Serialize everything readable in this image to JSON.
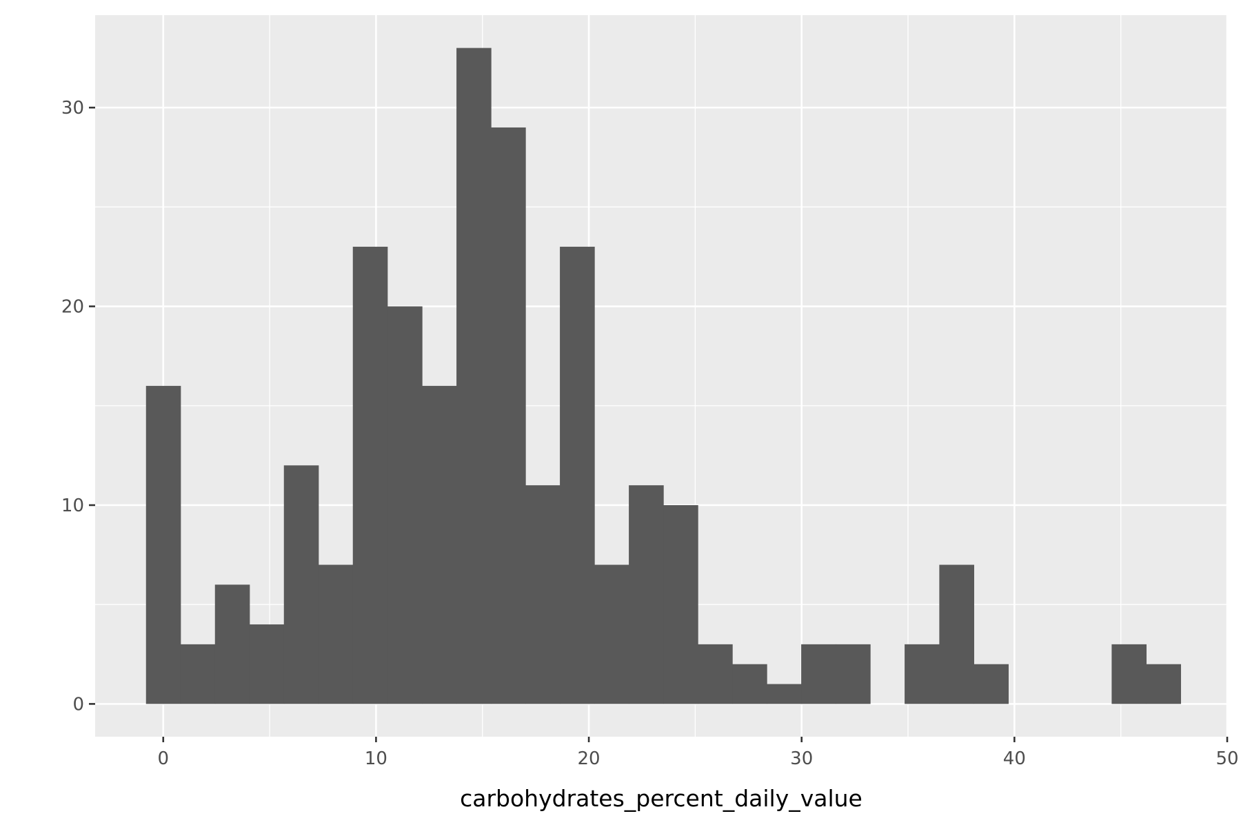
{
  "chart_data": {
    "type": "bar",
    "subtype": "histogram",
    "title": "",
    "xlabel": "carbohydrates_percent_daily_value",
    "ylabel": "",
    "bin_width": 1.6207,
    "bins": [
      {
        "x0": -0.81,
        "x1": 0.81,
        "count": 16
      },
      {
        "x0": 0.81,
        "x1": 2.43,
        "count": 3
      },
      {
        "x0": 2.43,
        "x1": 4.05,
        "count": 6
      },
      {
        "x0": 4.05,
        "x1": 5.67,
        "count": 4
      },
      {
        "x0": 5.67,
        "x1": 7.29,
        "count": 12
      },
      {
        "x0": 7.29,
        "x1": 8.91,
        "count": 7
      },
      {
        "x0": 8.91,
        "x1": 10.53,
        "count": 23
      },
      {
        "x0": 10.53,
        "x1": 12.16,
        "count": 20
      },
      {
        "x0": 12.16,
        "x1": 13.78,
        "count": 16
      },
      {
        "x0": 13.78,
        "x1": 15.4,
        "count": 33
      },
      {
        "x0": 15.4,
        "x1": 17.02,
        "count": 29
      },
      {
        "x0": 17.02,
        "x1": 18.64,
        "count": 11
      },
      {
        "x0": 18.64,
        "x1": 20.26,
        "count": 23
      },
      {
        "x0": 20.26,
        "x1": 21.88,
        "count": 7
      },
      {
        "x0": 21.88,
        "x1": 23.5,
        "count": 11
      },
      {
        "x0": 23.5,
        "x1": 25.12,
        "count": 10
      },
      {
        "x0": 25.12,
        "x1": 26.74,
        "count": 3
      },
      {
        "x0": 26.74,
        "x1": 28.36,
        "count": 2
      },
      {
        "x0": 28.36,
        "x1": 29.98,
        "count": 1
      },
      {
        "x0": 29.98,
        "x1": 31.6,
        "count": 3
      },
      {
        "x0": 31.6,
        "x1": 33.22,
        "count": 3
      },
      {
        "x0": 33.22,
        "x1": 34.84,
        "count": 0
      },
      {
        "x0": 34.84,
        "x1": 36.47,
        "count": 3
      },
      {
        "x0": 36.47,
        "x1": 38.09,
        "count": 7
      },
      {
        "x0": 38.09,
        "x1": 39.71,
        "count": 2
      },
      {
        "x0": 39.71,
        "x1": 41.33,
        "count": 0
      },
      {
        "x0": 41.33,
        "x1": 42.95,
        "count": 0
      },
      {
        "x0": 42.95,
        "x1": 44.57,
        "count": 0
      },
      {
        "x0": 44.57,
        "x1": 46.19,
        "count": 3
      },
      {
        "x0": 46.19,
        "x1": 47.81,
        "count": 2
      }
    ],
    "xlim": [
      -3.2,
      50
    ],
    "ylim": [
      -1.65,
      34.65
    ],
    "x_ticks": [
      0,
      10,
      20,
      30,
      40,
      50
    ],
    "x_tick_labels": [
      "0",
      "10",
      "20",
      "30",
      "40",
      "50"
    ],
    "y_ticks": [
      0,
      10,
      20,
      30
    ],
    "y_tick_labels": [
      "0",
      "10",
      "20",
      "30"
    ],
    "x_minor_grid": [
      5,
      15,
      25,
      35,
      45
    ],
    "y_minor_grid": [
      5,
      15,
      25
    ],
    "grid": true,
    "legend": "none",
    "colors": {
      "panel": "#EBEBEB",
      "grid": "#FFFFFF",
      "bar": "#595959",
      "tick_label": "#4D4D4D",
      "axis_title": "#000000",
      "tick_mark": "#333333"
    }
  }
}
